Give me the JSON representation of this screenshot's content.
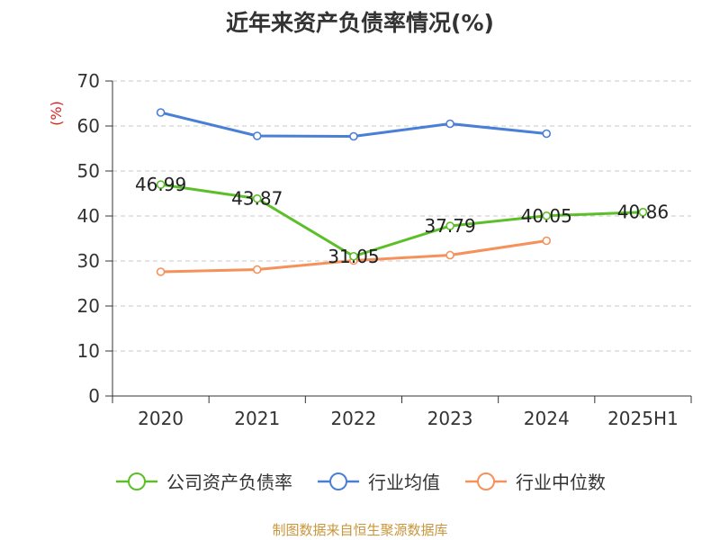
{
  "chart_data": {
    "type": "line",
    "title": "近年来资产负债率情况(%)",
    "ylabel": "(%)",
    "xlabel": "",
    "categories": [
      "2020",
      "2021",
      "2022",
      "2023",
      "2024",
      "2025H1"
    ],
    "ylim": [
      0,
      70
    ],
    "yticks": [
      0,
      10,
      20,
      30,
      40,
      50,
      60,
      70
    ],
    "grid": "horizontal dashed",
    "legend_position": "bottom",
    "series": [
      {
        "name": "公司资产负债率",
        "color": "#5cbf2a",
        "values": [
          46.99,
          43.87,
          31.05,
          37.79,
          40.05,
          40.86
        ],
        "labels": [
          "46.99",
          "43.87",
          "31.05",
          "37.79",
          "40.05",
          "40.86"
        ]
      },
      {
        "name": "行业均值",
        "color": "#4a7fd6",
        "values": [
          63.0,
          57.8,
          57.7,
          60.5,
          58.3,
          null
        ]
      },
      {
        "name": "行业中位数",
        "color": "#f5915a",
        "values": [
          27.6,
          28.1,
          30.1,
          31.3,
          34.5,
          null
        ]
      }
    ]
  },
  "footer": {
    "source": "制图数据来自恒生聚源数据库"
  }
}
